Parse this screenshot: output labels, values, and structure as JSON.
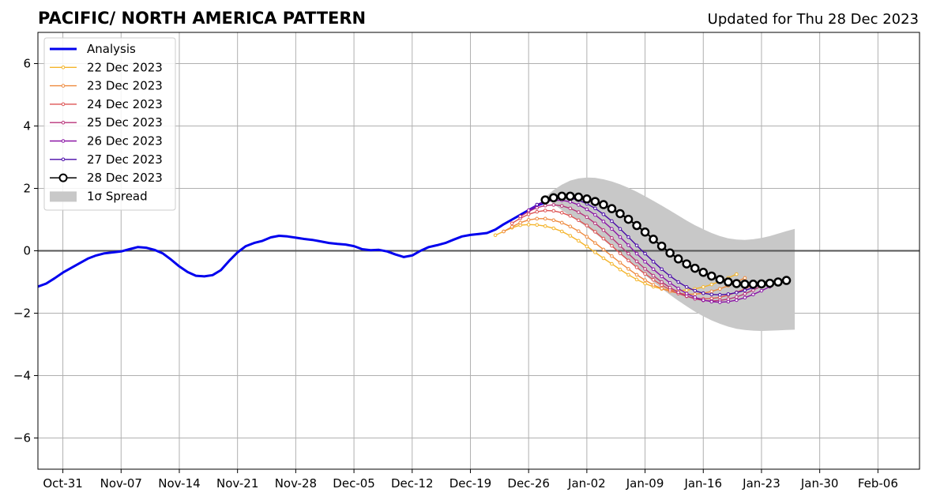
{
  "chart_data": {
    "type": "line",
    "title": "PACIFIC/ NORTH AMERICA PATTERN",
    "subtitle": "Updated for Thu 28 Dec 2023",
    "xlabel": "",
    "ylabel": "",
    "xlim": [
      "2023-10-28",
      "2024-02-11"
    ],
    "ylim": [
      -7,
      7
    ],
    "x_ticks": [
      "2023-10-31",
      "2023-11-07",
      "2023-11-14",
      "2023-11-21",
      "2023-11-28",
      "2023-12-05",
      "2023-12-12",
      "2023-12-19",
      "2023-12-26",
      "2024-01-02",
      "2024-01-09",
      "2024-01-16",
      "2024-01-23",
      "2024-01-30",
      "2024-02-06"
    ],
    "x_tick_labels": [
      "Oct-31",
      "Nov-07",
      "Nov-14",
      "Nov-21",
      "Nov-28",
      "Dec-05",
      "Dec-12",
      "Dec-19",
      "Dec-26",
      "Jan-02",
      "Jan-09",
      "Jan-16",
      "Jan-23",
      "Jan-30",
      "Feb-06"
    ],
    "y_ticks": [
      -6,
      -4,
      -2,
      0,
      2,
      4,
      6
    ],
    "y_tick_labels": [
      "−6",
      "−4",
      "−2",
      "0",
      "2",
      "4",
      "6"
    ],
    "grid": true,
    "legend_position": "top-left",
    "analysis": {
      "name": "Analysis",
      "color": "#0000ee",
      "start": "2023-10-28",
      "values": [
        -1.15,
        -1.05,
        -0.88,
        -0.7,
        -0.55,
        -0.4,
        -0.25,
        -0.15,
        -0.08,
        -0.05,
        -0.02,
        0.05,
        0.12,
        0.1,
        0.03,
        -0.08,
        -0.28,
        -0.5,
        -0.68,
        -0.8,
        -0.82,
        -0.78,
        -0.62,
        -0.32,
        -0.05,
        0.15,
        0.25,
        0.32,
        0.43,
        0.48,
        0.46,
        0.42,
        0.38,
        0.35,
        0.3,
        0.25,
        0.22,
        0.2,
        0.15,
        0.05,
        0.02,
        0.03,
        -0.02,
        -0.12,
        -0.2,
        -0.15,
        0.0,
        0.12,
        0.18,
        0.25,
        0.36,
        0.46,
        0.51,
        0.54,
        0.57,
        0.68,
        0.85,
        1.0,
        1.15,
        1.3,
        1.45,
        1.55
      ]
    },
    "forecasts": [
      {
        "name": "22 Dec 2023",
        "color": "#f4b42a",
        "start": "2023-12-22",
        "values": [
          0.5,
          0.62,
          0.74,
          0.82,
          0.84,
          0.83,
          0.79,
          0.72,
          0.62,
          0.48,
          0.32,
          0.14,
          -0.05,
          -0.24,
          -0.42,
          -0.6,
          -0.77,
          -0.92,
          -1.05,
          -1.15,
          -1.22,
          -1.26,
          -1.27,
          -1.26,
          -1.22,
          -1.16,
          -1.08,
          -0.98,
          -0.87,
          -0.75
        ]
      },
      {
        "name": "23 Dec 2023",
        "color": "#ee8a3e",
        "start": "2023-12-23",
        "values": [
          0.62,
          0.77,
          0.9,
          0.99,
          1.03,
          1.03,
          0.98,
          0.9,
          0.78,
          0.63,
          0.45,
          0.25,
          0.04,
          -0.17,
          -0.38,
          -0.58,
          -0.77,
          -0.94,
          -1.09,
          -1.21,
          -1.3,
          -1.36,
          -1.39,
          -1.39,
          -1.36,
          -1.3,
          -1.22,
          -1.12,
          -1.0,
          -0.87
        ]
      },
      {
        "name": "24 Dec 2023",
        "color": "#dd5555",
        "start": "2023-12-24",
        "values": [
          0.88,
          1.04,
          1.17,
          1.25,
          1.29,
          1.28,
          1.22,
          1.12,
          0.98,
          0.81,
          0.61,
          0.39,
          0.16,
          -0.08,
          -0.31,
          -0.53,
          -0.74,
          -0.93,
          -1.1,
          -1.25,
          -1.37,
          -1.46,
          -1.52,
          -1.54,
          -1.53,
          -1.49,
          -1.42,
          -1.33,
          -1.22,
          -1.09
        ]
      },
      {
        "name": "25 Dec 2023",
        "color": "#b8337a",
        "start": "2023-12-25",
        "values": [
          1.1,
          1.26,
          1.38,
          1.45,
          1.47,
          1.44,
          1.36,
          1.24,
          1.08,
          0.88,
          0.66,
          0.41,
          0.16,
          -0.09,
          -0.34,
          -0.58,
          -0.8,
          -1.0,
          -1.18,
          -1.33,
          -1.45,
          -1.54,
          -1.59,
          -1.61,
          -1.59,
          -1.55,
          -1.48,
          -1.38,
          -1.26,
          -1.13
        ]
      },
      {
        "name": "26 Dec 2023",
        "color": "#8a14a6",
        "start": "2023-12-26",
        "values": [
          1.3,
          1.46,
          1.56,
          1.62,
          1.62,
          1.57,
          1.47,
          1.33,
          1.15,
          0.94,
          0.7,
          0.44,
          0.18,
          -0.09,
          -0.35,
          -0.59,
          -0.82,
          -1.03,
          -1.21,
          -1.37,
          -1.49,
          -1.58,
          -1.63,
          -1.65,
          -1.63,
          -1.58,
          -1.5,
          -1.4,
          -1.28,
          -1.15
        ]
      },
      {
        "name": "27 Dec 2023",
        "color": "#4a0aa8",
        "start": "2023-12-27",
        "values": [
          1.48,
          1.6,
          1.68,
          1.71,
          1.69,
          1.62,
          1.51,
          1.36,
          1.17,
          0.95,
          0.7,
          0.44,
          0.17,
          -0.09,
          -0.35,
          -0.59,
          -0.81,
          -1.0,
          -1.16,
          -1.28,
          -1.36,
          -1.4,
          -1.41,
          -1.39,
          -1.34,
          -1.27,
          -1.18,
          -1.07
        ]
      },
      {
        "name": "28 Dec 2023",
        "color": "#000000",
        "start": "2023-12-28",
        "values": [
          1.63,
          1.7,
          1.75,
          1.75,
          1.72,
          1.66,
          1.58,
          1.48,
          1.35,
          1.19,
          1.01,
          0.81,
          0.6,
          0.37,
          0.15,
          -0.07,
          -0.26,
          -0.42,
          -0.56,
          -0.69,
          -0.81,
          -0.92,
          -1.0,
          -1.05,
          -1.07,
          -1.07,
          -1.06,
          -1.04,
          -1.0,
          -0.95
        ]
      }
    ],
    "spread": {
      "name": "1σ Spread",
      "color": "#c8c8c8",
      "start": "2023-12-28",
      "upper": [
        1.72,
        1.95,
        2.12,
        2.25,
        2.32,
        2.35,
        2.34,
        2.29,
        2.22,
        2.13,
        2.02,
        1.89,
        1.75,
        1.6,
        1.45,
        1.29,
        1.13,
        0.97,
        0.82,
        0.69,
        0.57,
        0.47,
        0.4,
        0.36,
        0.35,
        0.37,
        0.41,
        0.47,
        0.55,
        0.63,
        0.7
      ],
      "lower": [
        1.72,
        1.5,
        1.3,
        1.12,
        0.94,
        0.76,
        0.56,
        0.35,
        0.13,
        -0.1,
        -0.33,
        -0.56,
        -0.78,
        -1.0,
        -1.21,
        -1.41,
        -1.6,
        -1.78,
        -1.95,
        -2.1,
        -2.23,
        -2.34,
        -2.43,
        -2.5,
        -2.54,
        -2.56,
        -2.57,
        -2.56,
        -2.55,
        -2.54,
        -2.53
      ]
    }
  }
}
